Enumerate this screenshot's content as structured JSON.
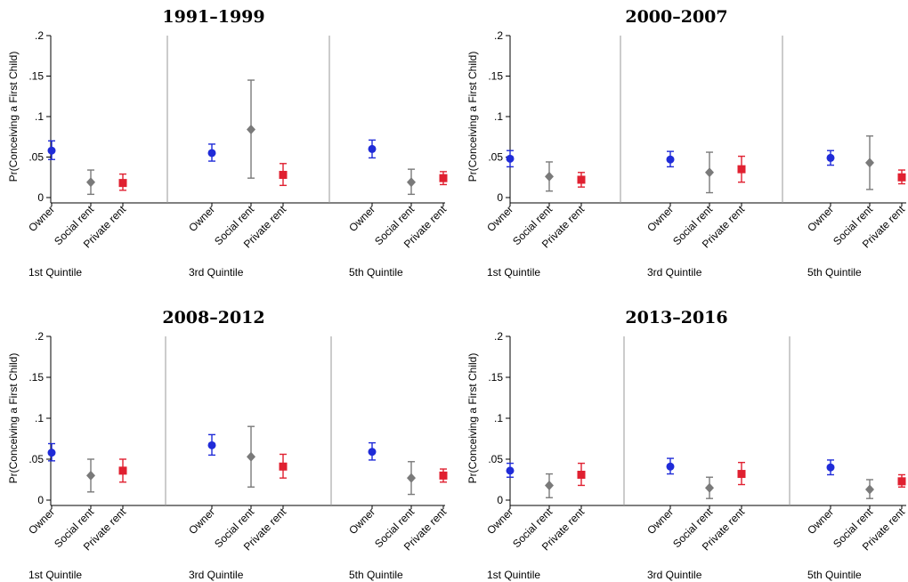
{
  "chart_data": [
    {
      "type": "scatter",
      "title": "1991–1999",
      "ylabel": "Pr(Conceiving a First Child)",
      "ylim": [
        0,
        0.2
      ],
      "yticks": [
        ".2",
        ".15",
        ".1",
        ".05",
        "0"
      ],
      "categories": [
        "Owner",
        "Social rent",
        "Private rent"
      ],
      "groups": [
        {
          "name": "1st Quintile",
          "points": [
            {
              "category": "Owner",
              "value": 0.058,
              "ci": [
                0.047,
                0.07
              ]
            },
            {
              "category": "Social rent",
              "value": 0.019,
              "ci": [
                0.004,
                0.034
              ]
            },
            {
              "category": "Private rent",
              "value": 0.018,
              "ci": [
                0.009,
                0.029
              ]
            }
          ]
        },
        {
          "name": "3rd Quintile",
          "points": [
            {
              "category": "Owner",
              "value": 0.055,
              "ci": [
                0.045,
                0.066
              ]
            },
            {
              "category": "Social rent",
              "value": 0.084,
              "ci": [
                0.024,
                0.145
              ]
            },
            {
              "category": "Private rent",
              "value": 0.028,
              "ci": [
                0.015,
                0.042
              ]
            }
          ]
        },
        {
          "name": "5th Quintile",
          "points": [
            {
              "category": "Owner",
              "value": 0.06,
              "ci": [
                0.049,
                0.071
              ]
            },
            {
              "category": "Social rent",
              "value": 0.019,
              "ci": [
                0.004,
                0.035
              ]
            },
            {
              "category": "Private rent",
              "value": 0.024,
              "ci": [
                0.016,
                0.032
              ]
            }
          ]
        }
      ]
    },
    {
      "type": "scatter",
      "title": "2000–2007",
      "ylabel": "Pr(Conceiving a First Child)",
      "ylim": [
        0,
        0.2
      ],
      "yticks": [
        ".2",
        ".15",
        ".1",
        ".05",
        "0"
      ],
      "categories": [
        "Owner",
        "Social rent",
        "Private rent"
      ],
      "groups": [
        {
          "name": "1st Quintile",
          "points": [
            {
              "category": "Owner",
              "value": 0.048,
              "ci": [
                0.038,
                0.058
              ]
            },
            {
              "category": "Social rent",
              "value": 0.026,
              "ci": [
                0.008,
                0.044
              ]
            },
            {
              "category": "Private rent",
              "value": 0.022,
              "ci": [
                0.013,
                0.031
              ]
            }
          ]
        },
        {
          "name": "3rd Quintile",
          "points": [
            {
              "category": "Owner",
              "value": 0.047,
              "ci": [
                0.038,
                0.057
              ]
            },
            {
              "category": "Social rent",
              "value": 0.031,
              "ci": [
                0.006,
                0.056
              ]
            },
            {
              "category": "Private rent",
              "value": 0.035,
              "ci": [
                0.019,
                0.051
              ]
            }
          ]
        },
        {
          "name": "5th Quintile",
          "points": [
            {
              "category": "Owner",
              "value": 0.049,
              "ci": [
                0.04,
                0.058
              ]
            },
            {
              "category": "Social rent",
              "value": 0.043,
              "ci": [
                0.01,
                0.076
              ]
            },
            {
              "category": "Private rent",
              "value": 0.025,
              "ci": [
                0.017,
                0.034
              ]
            }
          ]
        }
      ]
    },
    {
      "type": "scatter",
      "title": "2008–2012",
      "ylabel": "Pr(Conceiving a First Child)",
      "ylim": [
        0,
        0.2
      ],
      "yticks": [
        ".2",
        ".15",
        ".1",
        ".05",
        "0"
      ],
      "categories": [
        "Owner",
        "Social rent",
        "Private rent"
      ],
      "groups": [
        {
          "name": "1st Quintile",
          "points": [
            {
              "category": "Owner",
              "value": 0.058,
              "ci": [
                0.048,
                0.069
              ]
            },
            {
              "category": "Social rent",
              "value": 0.03,
              "ci": [
                0.01,
                0.05
              ]
            },
            {
              "category": "Private rent",
              "value": 0.036,
              "ci": [
                0.022,
                0.05
              ]
            }
          ]
        },
        {
          "name": "3rd Quintile",
          "points": [
            {
              "category": "Owner",
              "value": 0.067,
              "ci": [
                0.055,
                0.08
              ]
            },
            {
              "category": "Social rent",
              "value": 0.053,
              "ci": [
                0.016,
                0.09
              ]
            },
            {
              "category": "Private rent",
              "value": 0.041,
              "ci": [
                0.027,
                0.056
              ]
            }
          ]
        },
        {
          "name": "5th Quintile",
          "points": [
            {
              "category": "Owner",
              "value": 0.059,
              "ci": [
                0.049,
                0.07
              ]
            },
            {
              "category": "Social rent",
              "value": 0.027,
              "ci": [
                0.007,
                0.047
              ]
            },
            {
              "category": "Private rent",
              "value": 0.03,
              "ci": [
                0.022,
                0.038
              ]
            }
          ]
        }
      ]
    },
    {
      "type": "scatter",
      "title": "2013–2016",
      "ylabel": "Pr(Conceiving a First Child)",
      "ylim": [
        0,
        0.2
      ],
      "yticks": [
        ".2",
        ".15",
        ".1",
        ".05",
        "0"
      ],
      "categories": [
        "Owner",
        "Social rent",
        "Private rent"
      ],
      "groups": [
        {
          "name": "1st Quintile",
          "points": [
            {
              "category": "Owner",
              "value": 0.036,
              "ci": [
                0.028,
                0.045
              ]
            },
            {
              "category": "Social rent",
              "value": 0.018,
              "ci": [
                0.003,
                0.032
              ]
            },
            {
              "category": "Private rent",
              "value": 0.031,
              "ci": [
                0.018,
                0.045
              ]
            }
          ]
        },
        {
          "name": "3rd Quintile",
          "points": [
            {
              "category": "Owner",
              "value": 0.041,
              "ci": [
                0.032,
                0.051
              ]
            },
            {
              "category": "Social rent",
              "value": 0.015,
              "ci": [
                0.002,
                0.028
              ]
            },
            {
              "category": "Private rent",
              "value": 0.032,
              "ci": [
                0.019,
                0.046
              ]
            }
          ]
        },
        {
          "name": "5th Quintile",
          "points": [
            {
              "category": "Owner",
              "value": 0.04,
              "ci": [
                0.031,
                0.049
              ]
            },
            {
              "category": "Social rent",
              "value": 0.013,
              "ci": [
                0.002,
                0.025
              ]
            },
            {
              "category": "Private rent",
              "value": 0.023,
              "ci": [
                0.016,
                0.031
              ]
            }
          ]
        }
      ]
    }
  ],
  "colors": {
    "owner": "#1f2bd8",
    "social_rent": "#7a7a7a",
    "private_rent": "#e02030",
    "separator": "#9a9a9a",
    "axis": "#000000"
  },
  "markers": {
    "Owner": "circle",
    "Social rent": "diamond",
    "Private rent": "square"
  }
}
